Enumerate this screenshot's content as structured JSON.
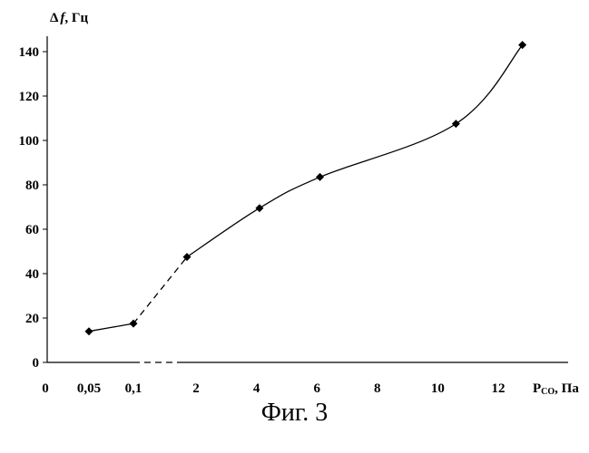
{
  "chart_data": {
    "type": "line",
    "ylabel_prefix": "Δ",
    "ylabel_var": "f",
    "ylabel_unit": ", Гц",
    "xlabel_main": "P",
    "xlabel_sub": "CO",
    "xlabel_unit": ", Па",
    "ylim": [
      0,
      150
    ],
    "y_ticks": [
      0,
      20,
      40,
      60,
      80,
      100,
      120,
      140
    ],
    "x_tick_labels": [
      "0",
      "0,05",
      "0,1",
      "2",
      "4",
      "6",
      "8",
      "10",
      "12"
    ],
    "grid": false,
    "series": [
      {
        "points": [
          {
            "x": "0,05",
            "y": 14
          },
          {
            "x": "0,1",
            "y": 17.5
          },
          {
            "x": "1.7",
            "y": 47.5
          },
          {
            "x": "4.1",
            "y": 69.5
          },
          {
            "x": "6.1",
            "y": 83.5
          },
          {
            "x": "10.6",
            "y": 107.5
          },
          {
            "x": "12.8",
            "y": 143
          }
        ],
        "dashed_segments": [
          [
            1,
            2
          ]
        ],
        "axis_dashed_segment": [
          "0,1",
          "1.7"
        ]
      }
    ]
  },
  "caption": "Фиг. 3"
}
